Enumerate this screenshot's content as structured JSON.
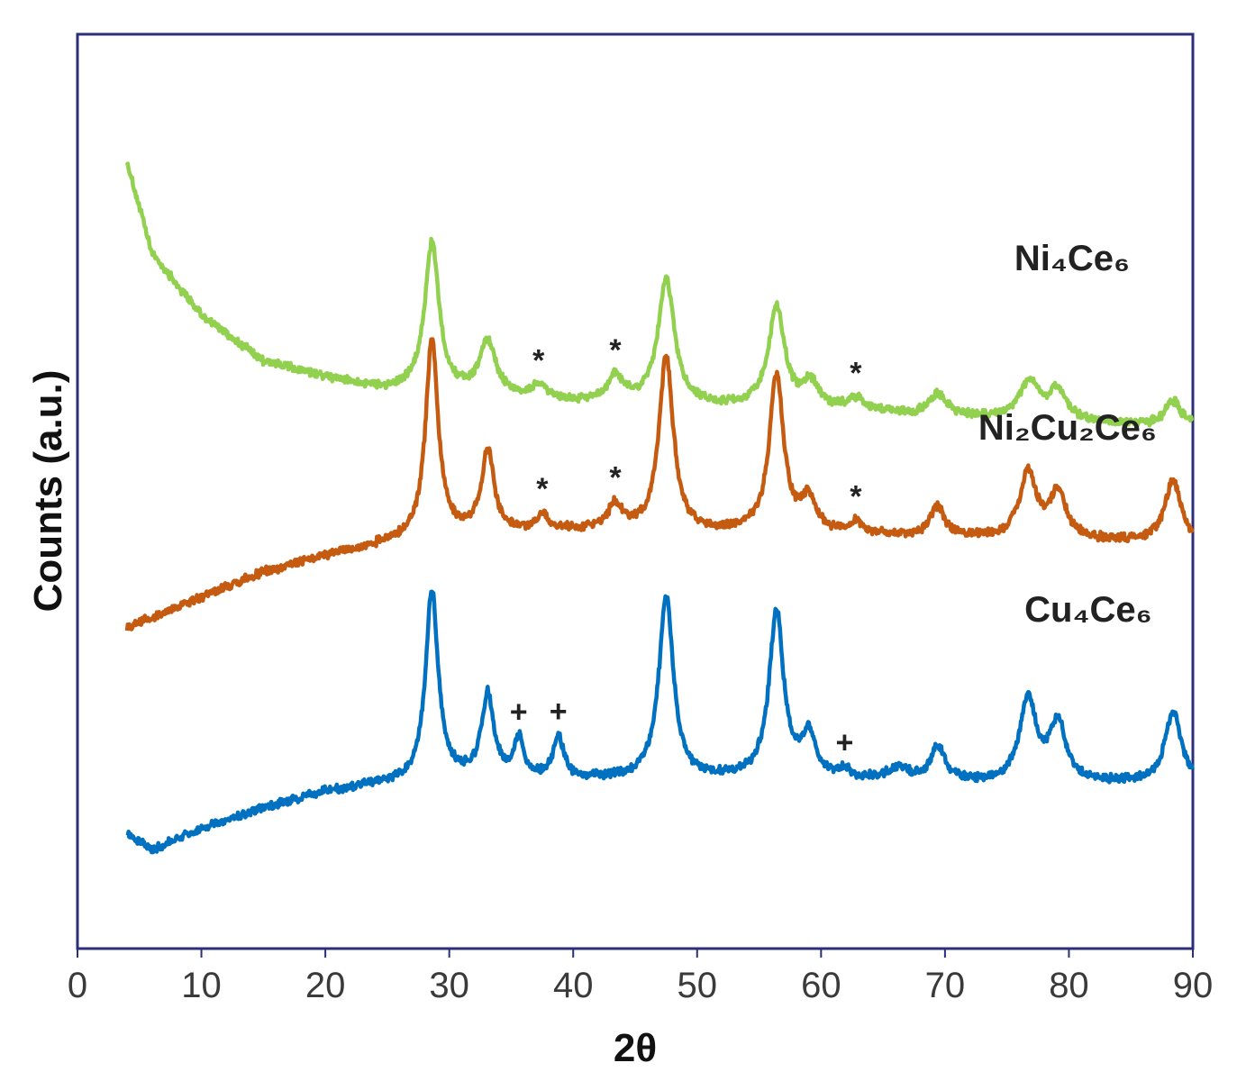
{
  "chart_data": {
    "type": "line",
    "title": "",
    "xlabel": "2θ",
    "ylabel": "Counts (a.u.)",
    "xlim": [
      0,
      90
    ],
    "xticks": [
      0,
      10,
      20,
      30,
      40,
      50,
      60,
      70,
      80,
      90
    ],
    "yticks_shown": false,
    "grid": false,
    "legend": "inline labels at right",
    "series": [
      {
        "name": "Ni₄Ce₆",
        "color": "#92d050",
        "x_start": 4,
        "background": [
          [
            4,
            100
          ],
          [
            6,
            78
          ],
          [
            10,
            63
          ],
          [
            15,
            52
          ],
          [
            20,
            48
          ],
          [
            25,
            45
          ],
          [
            30,
            44
          ],
          [
            40,
            42
          ],
          [
            60,
            40
          ],
          [
            75,
            38
          ],
          [
            90,
            36
          ]
        ],
        "peaks": [
          [
            28.6,
            36,
            0.7
          ],
          [
            33.1,
            13,
            0.8
          ],
          [
            37.2,
            3,
            0.7
          ],
          [
            43.4,
            6,
            0.8
          ],
          [
            47.5,
            30,
            0.8
          ],
          [
            56.4,
            24,
            0.8
          ],
          [
            59.2,
            6,
            0.8
          ],
          [
            62.8,
            3,
            0.8
          ],
          [
            69.4,
            5,
            0.8
          ],
          [
            76.8,
            9,
            1.0
          ],
          [
            79.1,
            7,
            0.8
          ],
          [
            88.4,
            6,
            0.8
          ]
        ],
        "markers": [
          {
            "x": 37.2,
            "symbol": "*"
          },
          {
            "x": 43.4,
            "symbol": "*"
          },
          {
            "x": 62.8,
            "symbol": "*"
          }
        ]
      },
      {
        "name": "Ni₂Cu₂Ce₆",
        "color": "#c55a11",
        "x_start": 4,
        "background": [
          [
            4,
            -12
          ],
          [
            6,
            -10
          ],
          [
            10,
            -5
          ],
          [
            15,
            1
          ],
          [
            20,
            5
          ],
          [
            25,
            8
          ],
          [
            30,
            10
          ],
          [
            40,
            11
          ],
          [
            60,
            10
          ],
          [
            75,
            9
          ],
          [
            90,
            8
          ]
        ],
        "peaks": [
          [
            28.6,
            48,
            0.6
          ],
          [
            33.1,
            20,
            0.6
          ],
          [
            37.5,
            4,
            0.5
          ],
          [
            43.4,
            6,
            0.7
          ],
          [
            47.5,
            42,
            0.7
          ],
          [
            56.4,
            38,
            0.7
          ],
          [
            59.0,
            8,
            0.7
          ],
          [
            62.8,
            3,
            0.7
          ],
          [
            69.4,
            7,
            0.7
          ],
          [
            76.7,
            16,
            0.8
          ],
          [
            79.1,
            11,
            0.8
          ],
          [
            88.4,
            15,
            0.8
          ]
        ],
        "markers": [
          {
            "x": 37.5,
            "symbol": "*"
          },
          {
            "x": 43.4,
            "symbol": "*"
          },
          {
            "x": 62.8,
            "symbol": "*"
          }
        ]
      },
      {
        "name": "Cu₄Ce₆",
        "color": "#0070c0",
        "x_start": 4,
        "background": [
          [
            4,
            -62
          ],
          [
            6,
            -66
          ],
          [
            10,
            -61
          ],
          [
            15,
            -56
          ],
          [
            20,
            -52
          ],
          [
            25,
            -50
          ],
          [
            30,
            -49
          ],
          [
            40,
            -49
          ],
          [
            60,
            -49
          ],
          [
            75,
            -50
          ],
          [
            90,
            -50
          ]
        ],
        "peaks": [
          [
            28.6,
            46,
            0.6
          ],
          [
            33.1,
            20,
            0.6
          ],
          [
            35.6,
            9,
            0.5
          ],
          [
            38.8,
            10,
            0.5
          ],
          [
            47.5,
            44,
            0.7
          ],
          [
            56.4,
            40,
            0.7
          ],
          [
            59.0,
            10,
            0.7
          ],
          [
            61.9,
            2,
            0.5
          ],
          [
            66.2,
            3,
            0.9
          ],
          [
            69.4,
            8,
            0.7
          ],
          [
            76.7,
            20,
            0.8
          ],
          [
            79.1,
            14,
            0.8
          ],
          [
            88.4,
            17,
            0.8
          ]
        ],
        "markers": [
          {
            "x": 35.6,
            "symbol": "+"
          },
          {
            "x": 38.8,
            "symbol": "+"
          },
          {
            "x": 61.9,
            "symbol": "+"
          }
        ]
      }
    ]
  }
}
